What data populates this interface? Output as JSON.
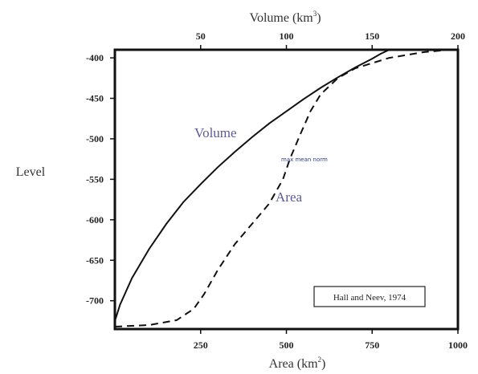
{
  "chart_data": {
    "type": "line",
    "top_axis": {
      "title_main": "Volume (km",
      "title_sup": "3",
      "title_end": ")",
      "range": [
        0,
        200
      ],
      "ticks": [
        {
          "v": 50,
          "label": "50"
        },
        {
          "v": 100,
          "label": "100"
        },
        {
          "v": 150,
          "label": "150"
        },
        {
          "v": 200,
          "label": "200"
        }
      ]
    },
    "bottom_axis": {
      "title_main": "Area (km",
      "title_sup": "2",
      "title_end": ")",
      "range": [
        0,
        1000
      ],
      "ticks": [
        {
          "v": 250,
          "label": "250"
        },
        {
          "v": 500,
          "label": "500"
        },
        {
          "v": 750,
          "label": "750"
        },
        {
          "v": 1000,
          "label": "1000"
        }
      ]
    },
    "left_axis": {
      "title": "Level",
      "range": [
        -390,
        -735
      ],
      "ticks": [
        {
          "v": -400,
          "label": "-400"
        },
        {
          "v": -450,
          "label": "-450"
        },
        {
          "v": -500,
          "label": "-500"
        },
        {
          "v": -550,
          "label": "-550"
        },
        {
          "v": -600,
          "label": "-600"
        },
        {
          "v": -650,
          "label": "-650"
        },
        {
          "v": -700,
          "label": "-700"
        }
      ]
    },
    "series": [
      {
        "name": "Volume",
        "axis": "top",
        "style": "solid",
        "points": [
          [
            0,
            -725
          ],
          [
            3,
            -705
          ],
          [
            10,
            -672
          ],
          [
            20,
            -636
          ],
          [
            30,
            -605
          ],
          [
            40,
            -578
          ],
          [
            50,
            -556
          ],
          [
            60,
            -535
          ],
          [
            70,
            -516
          ],
          [
            80,
            -498
          ],
          [
            90,
            -481
          ],
          [
            100,
            -466
          ],
          [
            110,
            -451
          ],
          [
            120,
            -437
          ],
          [
            130,
            -424
          ],
          [
            140,
            -412
          ],
          [
            150,
            -401
          ],
          [
            155,
            -395
          ],
          [
            160,
            -390
          ]
        ]
      },
      {
        "name": "Area",
        "axis": "bottom",
        "style": "dashed",
        "points": [
          [
            0,
            -732
          ],
          [
            100,
            -730
          ],
          [
            180,
            -724
          ],
          [
            230,
            -710
          ],
          [
            260,
            -692
          ],
          [
            300,
            -662
          ],
          [
            350,
            -630
          ],
          [
            400,
            -605
          ],
          [
            450,
            -580
          ],
          [
            490,
            -550
          ],
          [
            510,
            -525
          ],
          [
            540,
            -495
          ],
          [
            570,
            -466
          ],
          [
            600,
            -445
          ],
          [
            650,
            -425
          ],
          [
            700,
            -413
          ],
          [
            800,
            -400
          ],
          [
            900,
            -393
          ],
          [
            950,
            -391
          ]
        ]
      }
    ],
    "annotations": {
      "note": "max mean norm",
      "credit": "Hall and Neev, 1974"
    },
    "legend": "none",
    "grid": false
  }
}
